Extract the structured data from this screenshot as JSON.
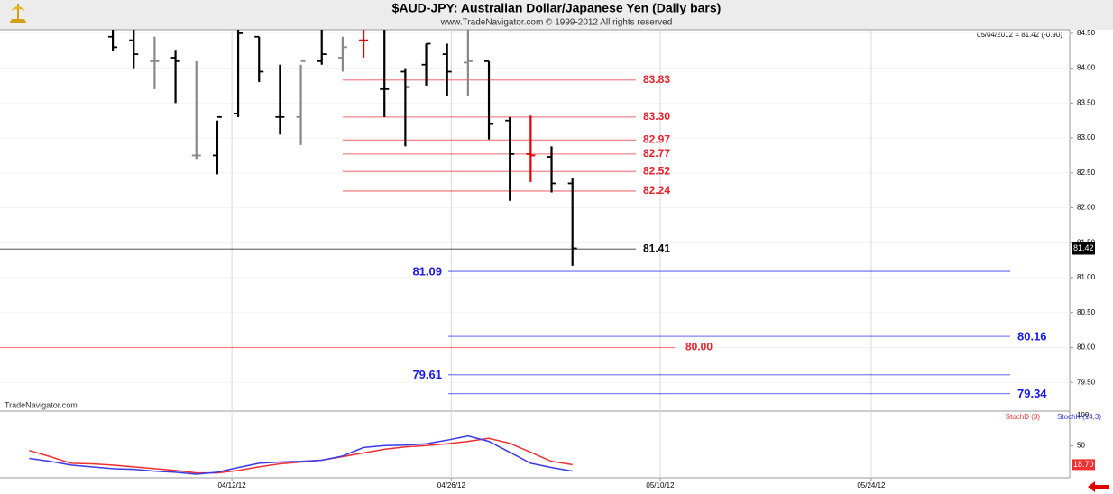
{
  "chart_data": [
    {
      "type": "ohlc",
      "title": "$AUD-JPY:  Australian Dollar/Japanese Yen  (Daily bars)",
      "subtitle": "www.TradeNavigator.com © 1999-2012 All rights reserved",
      "status": "05/04/2012 = 81.42 (-0.90)",
      "watermark": "TradeNavigator.com",
      "x": [
        0,
        1,
        2,
        3,
        4,
        5,
        6,
        7,
        8,
        9,
        10,
        11,
        12,
        13,
        14,
        15,
        16,
        17,
        18,
        19,
        20,
        21,
        22
      ],
      "open": [
        84.45,
        84.4,
        84.1,
        84.15,
        82.75,
        82.75,
        83.35,
        84.45,
        83.3,
        83.3,
        84.1,
        84.15,
        84.4,
        83.7,
        83.95,
        84.05,
        84.2,
        84.08,
        84.1,
        83.25,
        82.77,
        82.73,
        82.35
      ],
      "high": [
        84.55,
        84.55,
        84.45,
        84.25,
        84.1,
        83.25,
        84.55,
        84.45,
        84.05,
        84.05,
        84.55,
        84.45,
        84.55,
        84.55,
        84.0,
        84.35,
        84.35,
        84.55,
        84.1,
        83.3,
        83.32,
        82.88,
        82.42
      ],
      "low": [
        84.24,
        84.0,
        83.7,
        83.5,
        82.7,
        82.48,
        83.3,
        83.8,
        83.05,
        82.9,
        84.05,
        83.95,
        84.15,
        83.3,
        82.88,
        83.75,
        83.6,
        83.6,
        82.98,
        82.1,
        82.37,
        82.22,
        81.17
      ],
      "close": [
        84.3,
        84.2,
        84.1,
        84.1,
        82.75,
        83.3,
        84.5,
        83.95,
        83.3,
        84.1,
        84.2,
        84.3,
        84.4,
        83.7,
        83.73,
        84.35,
        83.95,
        84.1,
        83.2,
        82.77,
        82.75,
        82.35,
        81.42
      ],
      "colors": [
        "#000000",
        "#000000",
        "#888888",
        "#000000",
        "#888888",
        "#000000",
        "#000000",
        "#000000",
        "#000000",
        "#888888",
        "#000000",
        "#888888",
        "#e00000",
        "#000000",
        "#000000",
        "#000000",
        "#000000",
        "#888888",
        "#000000",
        "#000000",
        "#e00000",
        "#000000",
        "#000000"
      ],
      "current": {
        "value": 81.42,
        "label": "81.42"
      },
      "levels": [
        {
          "value": 83.83,
          "label": "83.83",
          "color": "#e8202a"
        },
        {
          "value": 83.3,
          "label": "83.30",
          "color": "#e8202a"
        },
        {
          "value": 82.97,
          "label": "82.97",
          "color": "#e8202a"
        },
        {
          "value": 82.77,
          "label": "82.77",
          "color": "#e8202a"
        },
        {
          "value": 82.52,
          "label": "82.52",
          "color": "#e8202a"
        },
        {
          "value": 82.24,
          "label": "82.24",
          "color": "#e8202a"
        },
        {
          "value": 81.41,
          "label": "81.41",
          "color": "#000000"
        },
        {
          "value": 81.09,
          "label": "81.09",
          "color": "#1a1ae6"
        },
        {
          "value": 80.16,
          "label": "80.16",
          "color": "#1a1ae6"
        },
        {
          "value": 80,
          "label": "80.00",
          "color": "#e8202a"
        },
        {
          "value": 79.61,
          "label": "79.61",
          "color": "#1a1ae6"
        },
        {
          "value": 79.34,
          "label": "79.34",
          "color": "#1a1ae6"
        }
      ],
      "xlim": [
        -5.4,
        45.8
      ],
      "ylim": [
        79.09,
        84.55
      ],
      "yticks": [
        {
          "value": 79.5,
          "label": "79.50"
        },
        {
          "value": 80,
          "label": "80.00"
        },
        {
          "value": 80.5,
          "label": "80.50"
        },
        {
          "value": 81,
          "label": "81.00"
        },
        {
          "value": 81.5,
          "label": "81.50"
        },
        {
          "value": 82,
          "label": "82.00"
        },
        {
          "value": 82.5,
          "label": "82.50"
        },
        {
          "value": 83,
          "label": "83.00"
        },
        {
          "value": 83.5,
          "label": "83.50"
        },
        {
          "value": 84,
          "label": "84.00"
        },
        {
          "value": 84.5,
          "label": "84.50"
        }
      ],
      "grid": true
    },
    {
      "type": "line",
      "x": [
        -4,
        -3,
        -2,
        -1,
        0,
        1,
        2,
        3,
        4,
        5,
        6,
        7,
        8,
        9,
        10,
        11,
        12,
        13,
        14,
        15,
        16,
        17,
        18,
        19,
        20,
        21,
        22
      ],
      "series": [
        {
          "name": "StochD (3)",
          "color": "#f03030",
          "values": [
            42,
            32,
            21,
            20,
            18,
            15,
            12,
            9,
            5,
            5,
            9,
            15,
            20,
            23,
            26,
            32,
            38,
            44,
            48,
            50,
            53,
            57,
            62,
            54,
            39,
            24,
            18.7
          ],
          "current_label": "18.70"
        },
        {
          "name": "StochK (14,3)",
          "color": "#3a3ae8",
          "values": [
            29,
            24,
            18,
            15,
            12,
            11,
            8,
            6,
            3,
            6,
            14,
            21,
            23,
            24,
            26,
            33,
            47,
            50,
            51,
            53,
            59,
            66,
            57,
            39,
            21,
            14,
            8
          ]
        }
      ],
      "xlim": [
        -5.4,
        45.8
      ],
      "ylim": [
        -3,
        107
      ],
      "yticks": [
        50,
        100
      ],
      "xticks": [
        {
          "value": 5.7,
          "label": "04/12/12"
        },
        {
          "value": 16.2,
          "label": "04/26/12"
        },
        {
          "value": 26.2,
          "label": "05/10/12"
        },
        {
          "value": 36.3,
          "label": "05/24/12"
        }
      ]
    }
  ]
}
